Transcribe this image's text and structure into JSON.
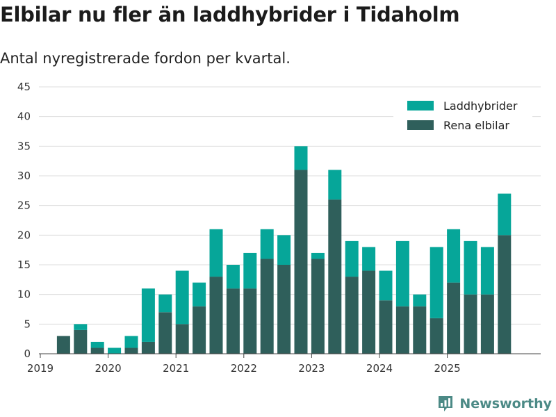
{
  "title": "Elbilar nu fler än laddhybrider i Tidaholm",
  "subtitle": "Antal nyregistrerade fordon per kvartal.",
  "brand": "Newsworthy",
  "chart_data": {
    "type": "bar",
    "stacked": true,
    "categories": [
      "2019 Q1",
      "2019 Q2",
      "2019 Q3",
      "2019 Q4",
      "2020 Q1",
      "2020 Q2",
      "2020 Q3",
      "2020 Q4",
      "2021 Q1",
      "2021 Q2",
      "2021 Q3",
      "2021 Q4",
      "2022 Q1",
      "2022 Q2",
      "2022 Q3",
      "2022 Q4",
      "2023 Q1",
      "2023 Q2",
      "2023 Q3",
      "2023 Q4",
      "2024 Q1",
      "2024 Q2",
      "2024 Q3",
      "2024 Q4",
      "2025 Q1",
      "2025 Q2",
      "2025 Q3",
      "2025 Q4"
    ],
    "series": [
      {
        "name": "Rena elbilar",
        "color": "#2f5f5b",
        "values": [
          0,
          3,
          4,
          1,
          0,
          1,
          2,
          7,
          5,
          8,
          13,
          11,
          11,
          16,
          15,
          31,
          16,
          26,
          13,
          14,
          9,
          8,
          8,
          6,
          12,
          10,
          10,
          20
        ]
      },
      {
        "name": "Laddhybrider",
        "color": "#06a699",
        "values": [
          0,
          0,
          1,
          1,
          1,
          2,
          9,
          3,
          9,
          4,
          8,
          4,
          6,
          5,
          5,
          4,
          1,
          5,
          6,
          4,
          5,
          11,
          2,
          12,
          9,
          9,
          8,
          7
        ]
      }
    ],
    "x_tick_labels": [
      "2019",
      "2020",
      "2021",
      "2022",
      "2023",
      "2024",
      "2025"
    ],
    "y_ticks": [
      0,
      5,
      10,
      15,
      20,
      25,
      30,
      35,
      40,
      45
    ],
    "ylim": [
      0,
      45
    ],
    "grid": true,
    "legend": {
      "position": "top-right",
      "entries": [
        "Laddhybrider",
        "Rena elbilar"
      ]
    }
  }
}
